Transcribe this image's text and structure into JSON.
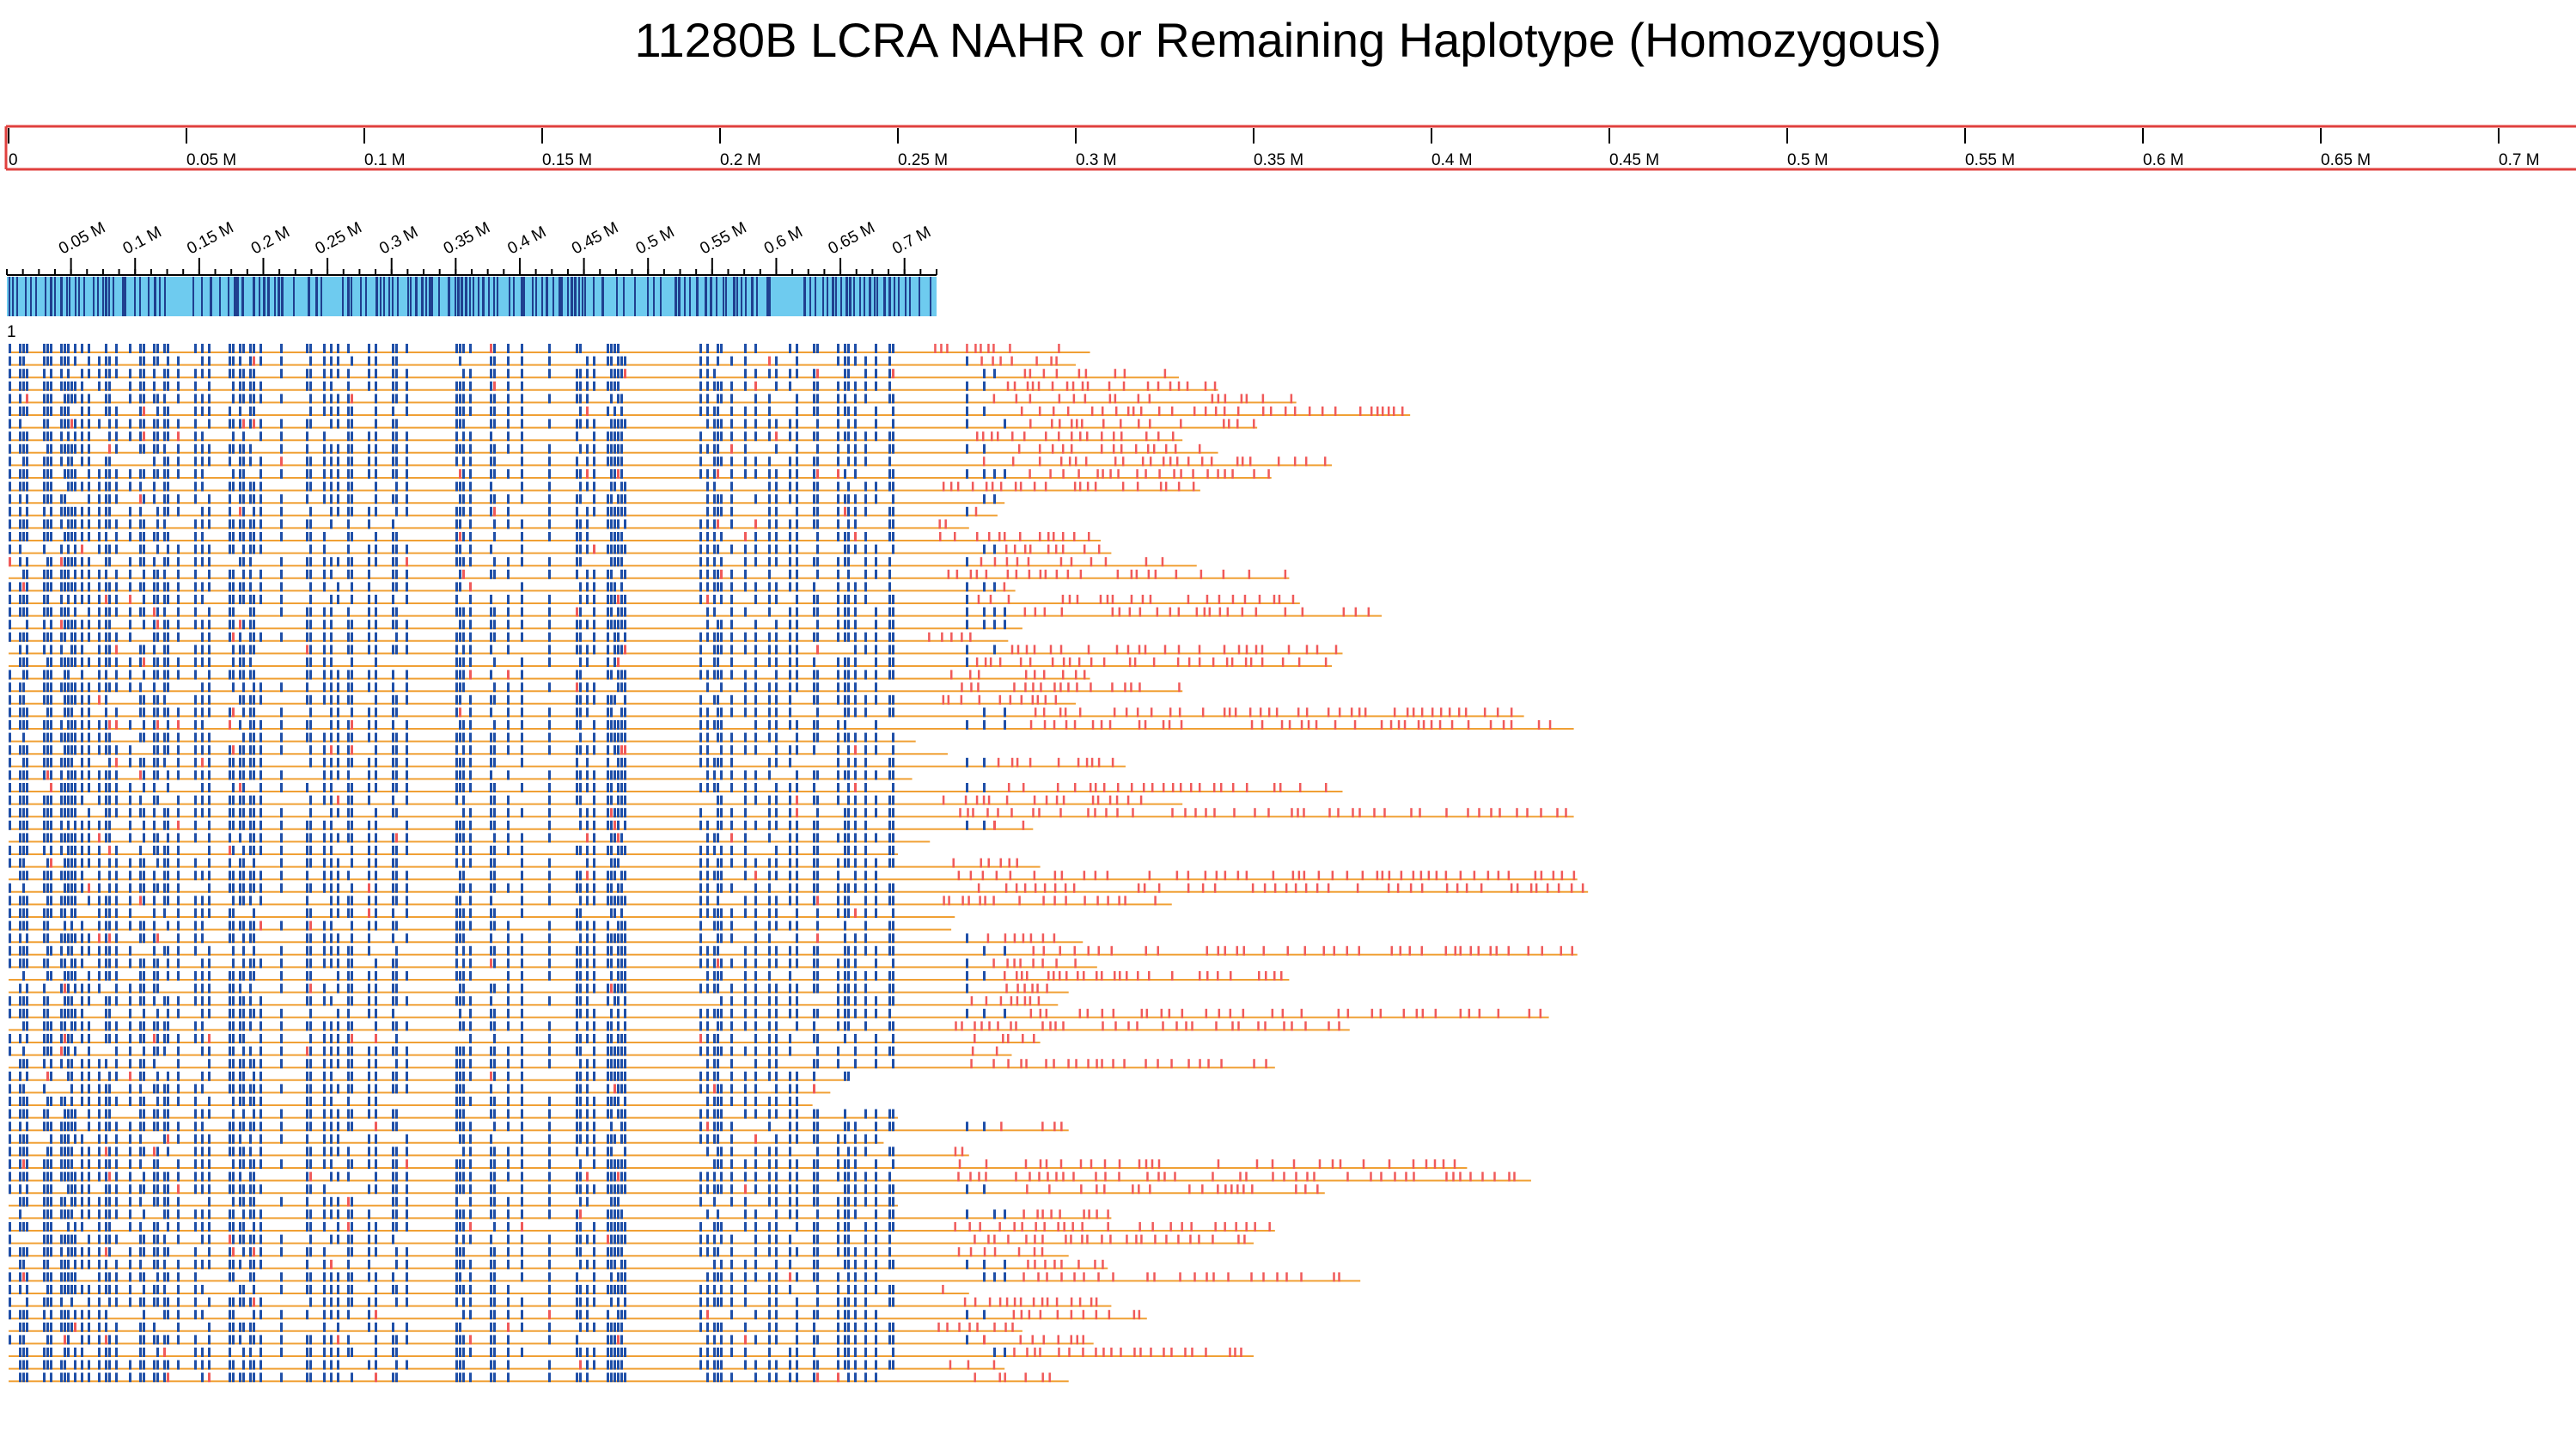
{
  "title": "11280B LCRA NAHR or Remaining Haplotype (Homozygous)",
  "colors": {
    "ruler_border": "#e0403e",
    "ruler_fill": "#ffffff",
    "minimap_fill": "#6ecbef",
    "minimap_mark": "#1f3f8f",
    "read_line": "#f0a035",
    "tick_match": "#1f4fa8",
    "tick_mismatch": "#f05a5a",
    "text": "#000000"
  },
  "main_axis": {
    "unit": "M",
    "min": 0,
    "max": 0.72,
    "ticks": [
      "0",
      "0.05 M",
      "0.1 M",
      "0.15 M",
      "0.2 M",
      "0.25 M",
      "0.3 M",
      "0.35 M",
      "0.4 M",
      "0.45 M",
      "0.5 M",
      "0.55 M",
      "0.6 M",
      "0.65 M",
      "0.7 M"
    ],
    "tick_values": [
      0,
      0.05,
      0.1,
      0.15,
      0.2,
      0.25,
      0.3,
      0.35,
      0.4,
      0.45,
      0.5,
      0.55,
      0.6,
      0.65,
      0.7
    ]
  },
  "overview_axis": {
    "ticks": [
      "0.05 M",
      "0.1 M",
      "0.15 M",
      "0.2 M",
      "0.25 M",
      "0.3 M",
      "0.35 M",
      "0.4 M",
      "0.45 M",
      "0.5 M",
      "0.55 M",
      "0.6 M",
      "0.65 M",
      "0.7 M"
    ],
    "tick_values": [
      0.05,
      0.1,
      0.15,
      0.2,
      0.25,
      0.3,
      0.35,
      0.4,
      0.45,
      0.5,
      0.55,
      0.6,
      0.65,
      0.7
    ],
    "max": 0.725
  },
  "track_label": "1",
  "reads": {
    "count": 83,
    "ends_M": [
      0.304,
      0.3,
      0.329,
      0.34,
      0.362,
      0.394,
      0.351,
      0.33,
      0.34,
      0.372,
      0.355,
      0.335,
      0.28,
      0.278,
      0.27,
      0.307,
      0.31,
      0.334,
      0.36,
      0.283,
      0.363,
      0.386,
      0.285,
      0.281,
      0.375,
      0.372,
      0.304,
      0.33,
      0.3,
      0.426,
      0.44,
      0.255,
      0.264,
      0.314,
      0.254,
      0.375,
      0.33,
      0.44,
      0.288,
      0.259,
      0.25,
      0.29,
      0.441,
      0.444,
      0.327,
      0.266,
      0.265,
      0.302,
      0.441,
      0.306,
      0.36,
      0.298,
      0.295,
      0.433,
      0.377,
      0.29,
      0.282,
      0.356,
      0.236,
      0.231,
      0.226,
      0.25,
      0.298,
      0.246,
      0.27,
      0.41,
      0.428,
      0.37,
      0.25,
      0.31,
      0.356,
      0.35,
      0.298,
      0.309,
      0.38,
      0.27,
      0.31,
      0.32,
      0.285,
      0.305,
      0.35,
      0.28,
      0.298
    ]
  }
}
